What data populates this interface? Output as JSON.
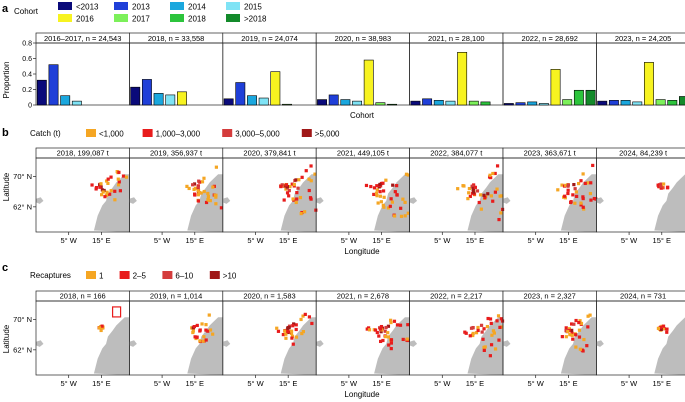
{
  "panel_labels": [
    "a",
    "b",
    "c"
  ],
  "colors": {
    "border": "#222222",
    "land": "#bdbdbd",
    "grey_bar": "#9e9e9e"
  },
  "chart_data": [
    {
      "type": "bar",
      "panel": "a",
      "legend_title": "Cohort",
      "legend": [
        {
          "label": "<2013",
          "color": "#0a0a7a"
        },
        {
          "label": "2013",
          "color": "#1f3fd8"
        },
        {
          "label": "2014",
          "color": "#1aa7de"
        },
        {
          "label": "2015",
          "color": "#7fe3f5"
        },
        {
          "label": "2016",
          "color": "#f7f320"
        },
        {
          "label": "2017",
          "color": "#7cf05a"
        },
        {
          "label": "2018",
          "color": "#2cc43c"
        },
        {
          "label": ">2018",
          "color": "#138a2a"
        }
      ],
      "categories": [
        "<2013",
        "2013",
        "2014",
        "2015",
        "2016",
        "2017",
        "2018",
        ">2018"
      ],
      "ylabel": "Proportion",
      "xlabel": "Cohort",
      "ylim": [
        0,
        0.8
      ],
      "yticks": [
        "0",
        "0.2",
        "0.4",
        "0.6",
        "0.8"
      ],
      "facets": [
        {
          "title": "2016–2017, n = 24,543",
          "values": [
            0.32,
            0.52,
            0.12,
            0.05,
            0,
            0,
            0,
            0
          ]
        },
        {
          "title": "2018, n = 33,558",
          "values": [
            0.23,
            0.33,
            0.15,
            0.13,
            0.17,
            0,
            0,
            0
          ]
        },
        {
          "title": "2019, n = 24,074",
          "values": [
            0.08,
            0.29,
            0.12,
            0.09,
            0.43,
            0.01,
            0,
            0
          ]
        },
        {
          "title": "2020, n = 38,983",
          "values": [
            0.07,
            0.13,
            0.07,
            0.05,
            0.58,
            0.03,
            0.01,
            0
          ]
        },
        {
          "title": "2021, n = 28,100",
          "values": [
            0.05,
            0.08,
            0.06,
            0.05,
            0.68,
            0.05,
            0.04,
            0
          ]
        },
        {
          "title": "2022, n = 28,692",
          "values": [
            0.02,
            0.03,
            0.04,
            0.02,
            0.46,
            0.07,
            0.19,
            0.19
          ]
        },
        {
          "title": "2023, n = 24,205",
          "values": [
            0.05,
            0.06,
            0.06,
            0.04,
            0.55,
            0.07,
            0.06,
            0.11
          ]
        }
      ]
    },
    {
      "type": "map",
      "panel": "b",
      "legend_title": "Catch (t)",
      "legend": [
        {
          "label": "<1,000",
          "color": "#f5a623"
        },
        {
          "label": "1,000–3,000",
          "color": "#e81c1c"
        },
        {
          "label": "3,000–5,000",
          "color": "#d43c3c"
        },
        {
          "label": ">5,000",
          "color": "#a01818"
        }
      ],
      "ylabel": "Latitude",
      "xlabel": "Longitude",
      "yticks": [
        "70° N",
        "62° N"
      ],
      "xticks": [
        "5° W",
        "15° E"
      ],
      "facets": [
        {
          "title": "2018, 199,087 t",
          "spread": 0.35
        },
        {
          "title": "2019, 356,937 t",
          "spread": 0.45
        },
        {
          "title": "2020, 379,841 t",
          "spread": 0.55
        },
        {
          "title": "2021, 449,105 t",
          "spread": 0.6
        },
        {
          "title": "2022, 384,077 t",
          "spread": 0.7
        },
        {
          "title": "2023, 363,671 t",
          "spread": 0.45
        },
        {
          "title": "2024, 84,239 t",
          "spread": 0.1
        }
      ]
    },
    {
      "type": "map",
      "panel": "c",
      "legend_title": "Recaptures",
      "legend": [
        {
          "label": "1",
          "color": "#f5a623"
        },
        {
          "label": "2–5",
          "color": "#e81c1c"
        },
        {
          "label": "6–10",
          "color": "#d43c3c"
        },
        {
          "label": ">10",
          "color": "#a01818"
        }
      ],
      "ylabel": "Latitude",
      "xlabel": "Longitude",
      "yticks": [
        "70° N",
        "62° N"
      ],
      "xticks": [
        "5° W",
        "15° E"
      ],
      "facets": [
        {
          "title": "2018, n = 166",
          "spread": 0.05
        },
        {
          "title": "2019, n = 1,014",
          "spread": 0.25
        },
        {
          "title": "2020, n = 1,583",
          "spread": 0.35
        },
        {
          "title": "2021, n = 2,678",
          "spread": 0.45
        },
        {
          "title": "2022, n = 2,217",
          "spread": 0.5
        },
        {
          "title": "2023, n = 2,327",
          "spread": 0.4
        },
        {
          "title": "2024, n = 731",
          "spread": 0.1
        }
      ]
    }
  ]
}
